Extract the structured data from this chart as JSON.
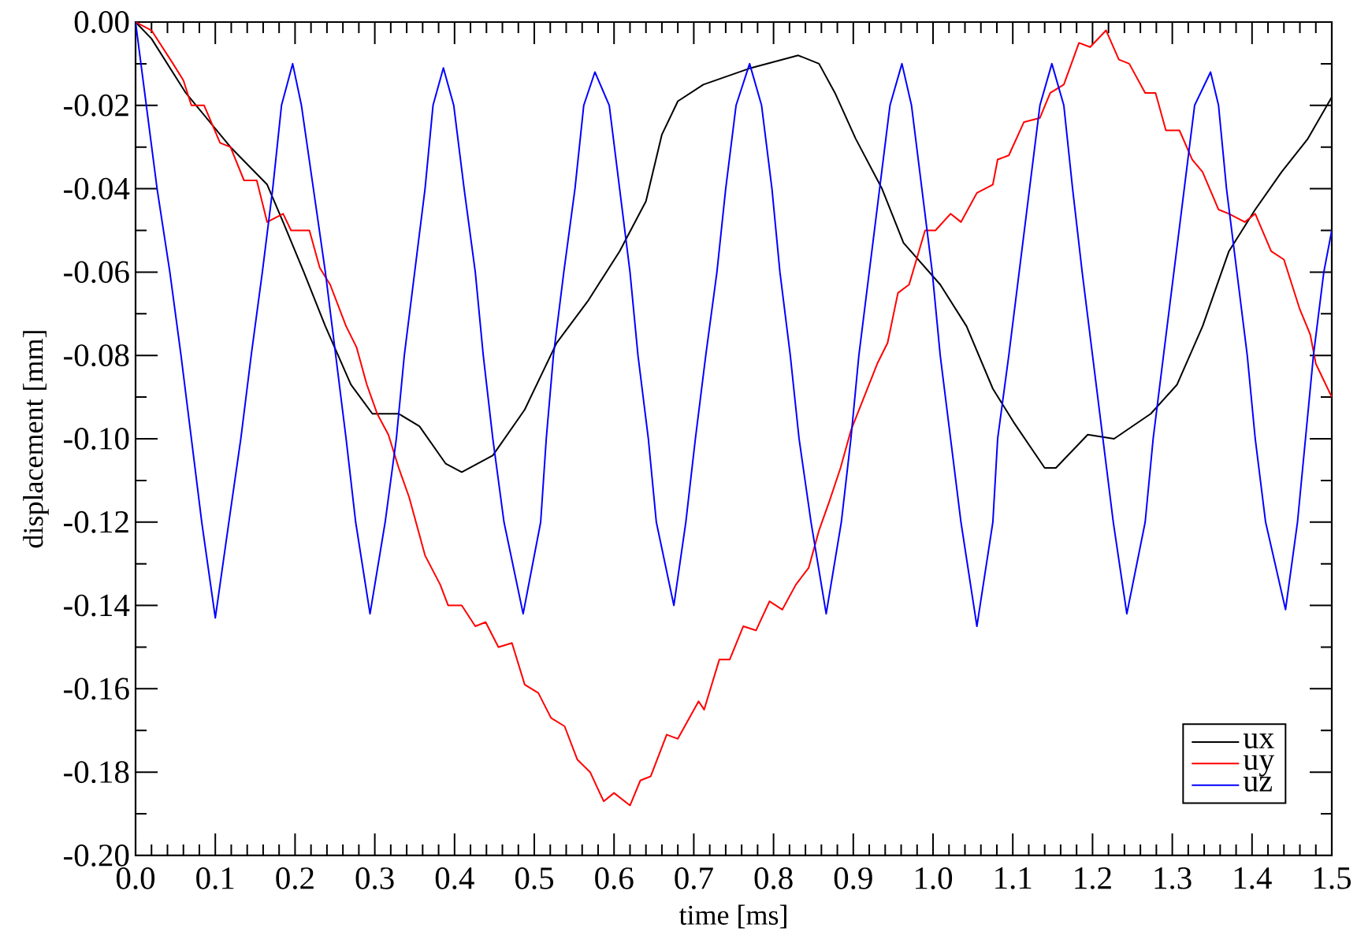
{
  "chart_data": {
    "type": "line",
    "xlabel": "time [ms]",
    "ylabel": "displacement [mm]",
    "xlim": [
      0,
      1.5
    ],
    "ylim": [
      -0.2,
      0
    ],
    "legend": "bottom right",
    "line_style": "solid",
    "xticks": [
      {
        "value": 0,
        "label": "0.0"
      },
      {
        "value": 0.02,
        "label": null
      },
      {
        "value": 0.04,
        "label": null
      },
      {
        "value": 0.06,
        "label": null
      },
      {
        "value": 0.08,
        "label": null
      },
      0.1,
      {
        "value": 0.12,
        "label": null
      },
      {
        "value": 0.14,
        "label": null
      },
      {
        "value": 0.16,
        "label": null
      },
      {
        "value": 0.18,
        "label": null
      },
      0.2,
      {
        "value": 0.22,
        "label": null
      },
      {
        "value": 0.24,
        "label": null
      },
      {
        "value": 0.26,
        "label": null
      },
      {
        "value": 0.28,
        "label": null
      },
      0.3,
      {
        "value": 0.32,
        "label": null
      },
      {
        "value": 0.34,
        "label": null
      },
      {
        "value": 0.36,
        "label": null
      },
      {
        "value": 0.38,
        "label": null
      },
      0.4,
      {
        "value": 0.42,
        "label": null
      },
      {
        "value": 0.44,
        "label": null
      },
      {
        "value": 0.46,
        "label": null
      },
      {
        "value": 0.48,
        "label": null
      },
      0.5,
      {
        "value": 0.52,
        "label": null
      },
      {
        "value": 0.54,
        "label": null
      },
      {
        "value": 0.56,
        "label": null
      },
      {
        "value": 0.58,
        "label": null
      },
      0.6,
      {
        "value": 0.62,
        "label": null
      },
      {
        "value": 0.64,
        "label": null
      },
      {
        "value": 0.66,
        "label": null
      },
      {
        "value": 0.68,
        "label": null
      },
      0.7,
      {
        "value": 0.72,
        "label": null
      },
      {
        "value": 0.74,
        "label": null
      },
      {
        "value": 0.76,
        "label": null
      },
      {
        "value": 0.78,
        "label": null
      },
      0.8,
      {
        "value": 0.82,
        "label": null
      },
      {
        "value": 0.84,
        "label": null
      },
      {
        "value": 0.86,
        "label": null
      },
      {
        "value": 0.88,
        "label": null
      },
      0.9,
      {
        "value": 0.92,
        "label": null
      },
      {
        "value": 0.94,
        "label": null
      },
      {
        "value": 0.96,
        "label": null
      },
      {
        "value": 0.98,
        "label": null
      },
      {
        "value": 1,
        "label": "1.0"
      },
      {
        "value": 1.02,
        "label": null
      },
      {
        "value": 1.04,
        "label": null
      },
      {
        "value": 1.06,
        "label": null
      },
      {
        "value": 1.08,
        "label": null
      },
      1.1,
      {
        "value": 1.12,
        "label": null
      },
      {
        "value": 1.14,
        "label": null
      },
      {
        "value": 1.16,
        "label": null
      },
      {
        "value": 1.18,
        "label": null
      },
      1.2,
      {
        "value": 1.22,
        "label": null
      },
      {
        "value": 1.24,
        "label": null
      },
      {
        "value": 1.26,
        "label": null
      },
      {
        "value": 1.28,
        "label": null
      },
      1.3,
      {
        "value": 1.32,
        "label": null
      },
      {
        "value": 1.34,
        "label": null
      },
      {
        "value": 1.36,
        "label": null
      },
      {
        "value": 1.38,
        "label": null
      },
      1.4,
      {
        "value": 1.42,
        "label": null
      },
      {
        "value": 1.44,
        "label": null
      },
      {
        "value": 1.46,
        "label": null
      },
      {
        "value": 1.48,
        "label": null
      },
      1.5
    ],
    "yticks": [
      {
        "value": 0,
        "label": "0.00"
      },
      {
        "value": -0.01,
        "label": null
      },
      -0.02,
      {
        "value": -0.03,
        "label": null
      },
      -0.04,
      {
        "value": -0.05,
        "label": null
      },
      -0.06,
      {
        "value": -0.07,
        "label": null
      },
      -0.08,
      {
        "value": -0.09,
        "label": null
      },
      {
        "value": -0.1,
        "label": "-0.10"
      },
      {
        "value": -0.11,
        "label": null
      },
      -0.12,
      {
        "value": -0.13,
        "label": null
      },
      -0.14,
      {
        "value": -0.15,
        "label": null
      },
      -0.16,
      {
        "value": -0.17,
        "label": null
      },
      -0.18,
      {
        "value": -0.19,
        "label": null
      },
      {
        "value": -0.2,
        "label": "-0.20"
      }
    ],
    "series": [
      {
        "name": "ux",
        "color": "#000000",
        "x": [
          0,
          0.02,
          0.063,
          0.119,
          0.165,
          0.185,
          0.211,
          0.238,
          0.27,
          0.297,
          0.33,
          0.356,
          0.389,
          0.409,
          0.448,
          0.488,
          0.528,
          0.567,
          0.607,
          0.64,
          0.66,
          0.68,
          0.712,
          0.772,
          0.831,
          0.857,
          0.877,
          0.903,
          0.936,
          0.963,
          1.009,
          1.042,
          1.075,
          1.101,
          1.14,
          1.154,
          1.194,
          1.227,
          1.273,
          1.306,
          1.338,
          1.371,
          1.404,
          1.437,
          1.47,
          1.5
        ],
        "values": [
          0,
          -0.004,
          -0.017,
          -0.03,
          -0.039,
          -0.048,
          -0.06,
          -0.073,
          -0.087,
          -0.094,
          -0.094,
          -0.097,
          -0.106,
          -0.108,
          -0.104,
          -0.093,
          -0.077,
          -0.067,
          -0.055,
          -0.043,
          -0.027,
          -0.019,
          -0.015,
          -0.011,
          -0.008,
          -0.01,
          -0.017,
          -0.028,
          -0.04,
          -0.053,
          -0.063,
          -0.073,
          -0.088,
          -0.096,
          -0.107,
          -0.107,
          -0.099,
          -0.1,
          -0.094,
          -0.087,
          -0.073,
          -0.055,
          -0.045,
          -0.036,
          -0.028,
          -0.018
        ]
      },
      {
        "name": "uy",
        "color": "#ff0000",
        "x": [
          0,
          0.02,
          0.047,
          0.06,
          0.07,
          0.086,
          0.106,
          0.119,
          0.136,
          0.152,
          0.165,
          0.185,
          0.195,
          0.218,
          0.231,
          0.244,
          0.264,
          0.277,
          0.29,
          0.303,
          0.317,
          0.33,
          0.343,
          0.363,
          0.382,
          0.392,
          0.409,
          0.426,
          0.439,
          0.455,
          0.472,
          0.488,
          0.505,
          0.521,
          0.538,
          0.554,
          0.57,
          0.587,
          0.6,
          0.62,
          0.633,
          0.646,
          0.666,
          0.68,
          0.706,
          0.713,
          0.732,
          0.745,
          0.762,
          0.778,
          0.795,
          0.811,
          0.828,
          0.844,
          0.857,
          0.87,
          0.884,
          0.897,
          0.93,
          0.943,
          0.956,
          0.97,
          0.99,
          1.003,
          1.022,
          1.035,
          1.055,
          1.075,
          1.081,
          1.095,
          1.114,
          1.134,
          1.147,
          1.164,
          1.183,
          1.197,
          1.217,
          1.233,
          1.246,
          1.266,
          1.279,
          1.292,
          1.309,
          1.325,
          1.338,
          1.358,
          1.371,
          1.391,
          1.404,
          1.424,
          1.44,
          1.46,
          1.473,
          1.48,
          1.5
        ],
        "values": [
          0,
          -0.002,
          -0.01,
          -0.014,
          -0.02,
          -0.02,
          -0.029,
          -0.03,
          -0.038,
          -0.038,
          -0.048,
          -0.046,
          -0.05,
          -0.05,
          -0.059,
          -0.063,
          -0.073,
          -0.078,
          -0.087,
          -0.094,
          -0.099,
          -0.107,
          -0.114,
          -0.128,
          -0.135,
          -0.14,
          -0.14,
          -0.145,
          -0.144,
          -0.15,
          -0.149,
          -0.159,
          -0.161,
          -0.167,
          -0.169,
          -0.177,
          -0.18,
          -0.187,
          -0.185,
          -0.188,
          -0.182,
          -0.181,
          -0.171,
          -0.172,
          -0.163,
          -0.165,
          -0.153,
          -0.153,
          -0.145,
          -0.146,
          -0.139,
          -0.141,
          -0.135,
          -0.131,
          -0.122,
          -0.115,
          -0.107,
          -0.098,
          -0.082,
          -0.077,
          -0.065,
          -0.063,
          -0.05,
          -0.05,
          -0.046,
          -0.048,
          -0.041,
          -0.039,
          -0.033,
          -0.032,
          -0.024,
          -0.023,
          -0.017,
          -0.015,
          -0.005,
          -0.006,
          -0.002,
          -0.009,
          -0.01,
          -0.017,
          -0.017,
          -0.026,
          -0.026,
          -0.033,
          -0.036,
          -0.045,
          -0.046,
          -0.048,
          -0.046,
          -0.055,
          -0.057,
          -0.069,
          -0.075,
          -0.082,
          -0.09
        ]
      },
      {
        "name": "uz",
        "color": "#0000ff",
        "x": [
          0,
          0.027,
          0.043,
          0.057,
          0.07,
          0.083,
          0.1,
          0.117,
          0.132,
          0.145,
          0.159,
          0.172,
          0.183,
          0.197,
          0.208,
          0.223,
          0.238,
          0.251,
          0.264,
          0.276,
          0.294,
          0.313,
          0.327,
          0.337,
          0.35,
          0.363,
          0.373,
          0.386,
          0.399,
          0.412,
          0.426,
          0.436,
          0.448,
          0.462,
          0.486,
          0.508,
          0.515,
          0.524,
          0.537,
          0.551,
          0.562,
          0.576,
          0.594,
          0.607,
          0.62,
          0.63,
          0.643,
          0.653,
          0.675,
          0.69,
          0.702,
          0.715,
          0.729,
          0.74,
          0.753,
          0.77,
          0.785,
          0.798,
          0.808,
          0.821,
          0.832,
          0.847,
          0.866,
          0.885,
          0.897,
          0.907,
          0.92,
          0.933,
          0.946,
          0.961,
          0.973,
          0.986,
          0.999,
          1.009,
          1.022,
          1.035,
          1.055,
          1.075,
          1.081,
          1.095,
          1.108,
          1.121,
          1.134,
          1.149,
          1.164,
          1.175,
          1.187,
          1.2,
          1.213,
          1.226,
          1.243,
          1.266,
          1.276,
          1.289,
          1.302,
          1.315,
          1.328,
          1.348,
          1.358,
          1.368,
          1.381,
          1.394,
          1.404,
          1.417,
          1.442,
          1.457,
          1.467,
          1.477,
          1.49,
          1.5
        ],
        "values": [
          0,
          -0.04,
          -0.06,
          -0.08,
          -0.1,
          -0.12,
          -0.143,
          -0.12,
          -0.1,
          -0.08,
          -0.06,
          -0.04,
          -0.02,
          -0.01,
          -0.02,
          -0.04,
          -0.06,
          -0.08,
          -0.1,
          -0.12,
          -0.142,
          -0.12,
          -0.1,
          -0.08,
          -0.06,
          -0.04,
          -0.02,
          -0.011,
          -0.02,
          -0.04,
          -0.06,
          -0.08,
          -0.1,
          -0.12,
          -0.142,
          -0.12,
          -0.1,
          -0.08,
          -0.06,
          -0.04,
          -0.02,
          -0.012,
          -0.02,
          -0.04,
          -0.06,
          -0.08,
          -0.1,
          -0.12,
          -0.14,
          -0.12,
          -0.1,
          -0.08,
          -0.06,
          -0.04,
          -0.02,
          -0.01,
          -0.02,
          -0.04,
          -0.06,
          -0.08,
          -0.1,
          -0.12,
          -0.142,
          -0.12,
          -0.1,
          -0.08,
          -0.06,
          -0.04,
          -0.02,
          -0.01,
          -0.02,
          -0.04,
          -0.06,
          -0.08,
          -0.1,
          -0.12,
          -0.145,
          -0.12,
          -0.1,
          -0.08,
          -0.06,
          -0.04,
          -0.02,
          -0.01,
          -0.02,
          -0.04,
          -0.06,
          -0.08,
          -0.1,
          -0.12,
          -0.142,
          -0.12,
          -0.1,
          -0.08,
          -0.06,
          -0.04,
          -0.02,
          -0.012,
          -0.02,
          -0.04,
          -0.06,
          -0.08,
          -0.1,
          -0.12,
          -0.141,
          -0.12,
          -0.1,
          -0.08,
          -0.06,
          -0.05
        ]
      }
    ]
  }
}
